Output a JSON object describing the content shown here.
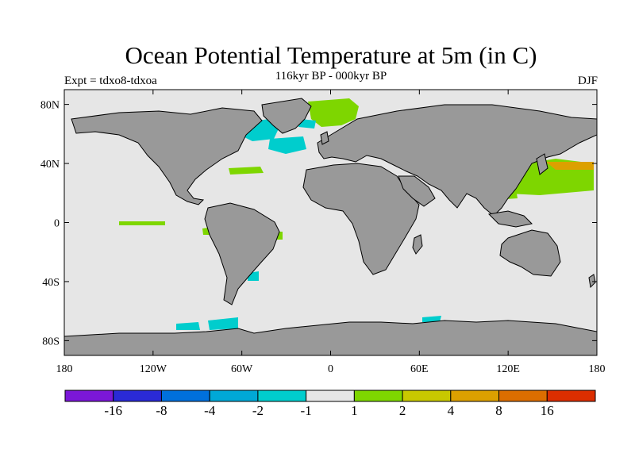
{
  "title": "Ocean Potential Temperature at 5m (in C)",
  "subtitle": "116kyr BP - 000kyr BP",
  "left_label": "Expt = tdxo8-tdxoa",
  "right_label": "DJF",
  "axes": {
    "lon_ticks": [
      {
        "value": -180,
        "label": "180"
      },
      {
        "value": -120,
        "label": "120W"
      },
      {
        "value": -60,
        "label": "60W"
      },
      {
        "value": 0,
        "label": "0"
      },
      {
        "value": 60,
        "label": "60E"
      },
      {
        "value": 120,
        "label": "120E"
      },
      {
        "value": 180,
        "label": "180"
      }
    ],
    "lat_ticks": [
      {
        "value": 80,
        "label": "80N"
      },
      {
        "value": 40,
        "label": "40N"
      },
      {
        "value": 0,
        "label": "0"
      },
      {
        "value": -40,
        "label": "40S"
      },
      {
        "value": -80,
        "label": "80S"
      }
    ],
    "lon_range": [
      -180,
      180
    ],
    "lat_range": [
      -90,
      90
    ]
  },
  "colorbar": {
    "colors": [
      "#7b17d8",
      "#2a2ad6",
      "#0070dc",
      "#00a8d6",
      "#00cdcd",
      "#e6e6e6",
      "#7ed600",
      "#c8c800",
      "#dca000",
      "#dc6e00",
      "#dc2e00"
    ],
    "labels": [
      "-16",
      "-8",
      "-4",
      "-2",
      "-1",
      "1",
      "2",
      "4",
      "8",
      "16"
    ]
  },
  "colors": {
    "ocean": "#e6e6e6",
    "land": "#999999",
    "coast": "#000000"
  }
}
